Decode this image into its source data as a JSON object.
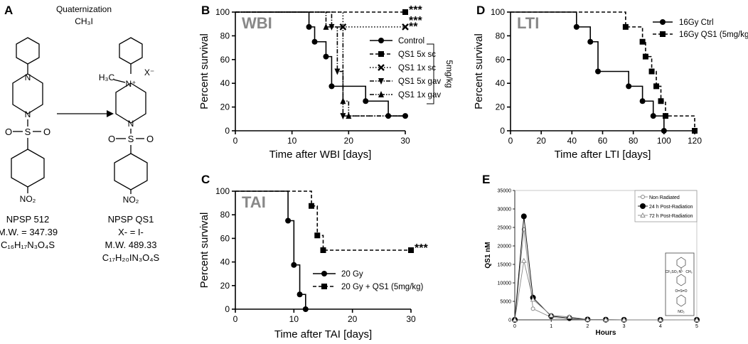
{
  "panel_a": {
    "label": "A",
    "reaction_line1": "Quaternization",
    "reaction_line2": "CH₃I",
    "left": {
      "name": "NPSP 512",
      "mw": "M.W. = 347.39",
      "formula": "C₁₆H₁₇N₃O₄S",
      "so2_o": "O",
      "so2_s": "S",
      "nitro": "NO₂"
    },
    "right": {
      "name": "NPSP QS1",
      "x_line": "X- = I-",
      "mw": "M.W. 489.33",
      "formula": "C₁₇H₂₀IN₃O₄S",
      "methyl": "H₃C",
      "counterion": "X⁻",
      "n_plus": "N⁺",
      "so2_o": "O",
      "so2_s": "S",
      "nitro": "NO₂"
    }
  },
  "chart_data": [
    {
      "id": "B",
      "panel_label": "B",
      "type": "line",
      "inner_title": "WBI",
      "xlabel": "Time after WBI [days]",
      "ylabel": "Percent survival",
      "xlim": [
        0,
        30
      ],
      "ylim": [
        0,
        100
      ],
      "xticks": [
        0,
        10,
        20,
        30
      ],
      "yticks": [
        0,
        20,
        40,
        60,
        80,
        100
      ],
      "dose_note": "5mg/kg",
      "series": [
        {
          "name": "Control",
          "style": "solid",
          "marker": "circle",
          "steps": [
            [
              0,
              100
            ],
            [
              13,
              87.5
            ],
            [
              14,
              75
            ],
            [
              16,
              62.5
            ],
            [
              17,
              37.5
            ],
            [
              23,
              25
            ],
            [
              27,
              12.5
            ],
            [
              30,
              12.5
            ]
          ],
          "markers": [
            [
              13,
              87.5
            ],
            [
              14,
              75
            ],
            [
              16,
              62.5
            ],
            [
              17,
              37.5
            ],
            [
              23,
              25
            ],
            [
              27,
              12.5
            ],
            [
              30,
              12.5
            ]
          ]
        },
        {
          "name": "QS1 5x sc",
          "style": "dashed",
          "marker": "square",
          "steps": [
            [
              0,
              100
            ],
            [
              30,
              100
            ]
          ],
          "markers": [
            [
              30,
              100
            ]
          ]
        },
        {
          "name": "QS1 1x sc",
          "style": "dotted",
          "marker": "x",
          "steps": [
            [
              0,
              100
            ],
            [
              19,
              87.5
            ],
            [
              30,
              87.5
            ]
          ],
          "markers": [
            [
              19,
              87.5
            ],
            [
              30,
              87.5
            ]
          ]
        },
        {
          "name": "QS1 5x gav",
          "style": "dashdot",
          "marker": "tri-down",
          "steps": [
            [
              0,
              100
            ],
            [
              17,
              87.5
            ],
            [
              18,
              50
            ],
            [
              19,
              12.5
            ],
            [
              30,
              12.5
            ]
          ],
          "markers": [
            [
              17,
              87.5
            ],
            [
              18,
              50
            ],
            [
              19,
              12.5
            ]
          ]
        },
        {
          "name": "QS1 1x gav",
          "style": "dashdotdot",
          "marker": "tri-up",
          "steps": [
            [
              0,
              100
            ],
            [
              16,
              87.5
            ],
            [
              19,
              25
            ],
            [
              20,
              12.5
            ],
            [
              30,
              12.5
            ]
          ],
          "markers": [
            [
              16,
              87.5
            ],
            [
              19,
              25
            ],
            [
              20,
              12.5
            ]
          ]
        }
      ],
      "annotations": [
        {
          "text": "***",
          "x": 30,
          "y": 100
        },
        {
          "text": "***",
          "x": 30,
          "y": 91
        },
        {
          "text": "**",
          "x": 30,
          "y": 86
        }
      ]
    },
    {
      "id": "C",
      "panel_label": "C",
      "type": "line",
      "inner_title": "TAI",
      "xlabel": "Time after TAI [days]",
      "ylabel": "Percent survival",
      "xlim": [
        0,
        30
      ],
      "ylim": [
        0,
        100
      ],
      "xticks": [
        0,
        10,
        20,
        30
      ],
      "yticks": [
        0,
        20,
        40,
        60,
        80,
        100
      ],
      "series": [
        {
          "name": "20 Gy",
          "style": "solid",
          "marker": "circle",
          "steps": [
            [
              0,
              100
            ],
            [
              9,
              75
            ],
            [
              10,
              37.5
            ],
            [
              11,
              12.5
            ],
            [
              12,
              0
            ]
          ],
          "markers": [
            [
              9,
              75
            ],
            [
              10,
              37.5
            ],
            [
              11,
              12.5
            ],
            [
              12,
              0
            ]
          ]
        },
        {
          "name": "20 Gy + QS1 (5mg/kg)",
          "style": "dashed",
          "marker": "square",
          "steps": [
            [
              0,
              100
            ],
            [
              13,
              87.5
            ],
            [
              14,
              62.5
            ],
            [
              15,
              50
            ],
            [
              30,
              50
            ]
          ],
          "markers": [
            [
              13,
              87.5
            ],
            [
              14,
              62.5
            ],
            [
              15,
              50
            ],
            [
              30,
              50
            ]
          ]
        }
      ],
      "annotations": [
        {
          "text": "***",
          "x": 30,
          "y": 50
        }
      ]
    },
    {
      "id": "D",
      "panel_label": "D",
      "type": "line",
      "inner_title": "LTI",
      "xlabel": "Time after LTI [days]",
      "ylabel": "Percent survival",
      "xlim": [
        0,
        120
      ],
      "ylim": [
        0,
        100
      ],
      "xticks": [
        0,
        20,
        40,
        60,
        80,
        100,
        120
      ],
      "yticks": [
        0,
        20,
        40,
        60,
        80,
        100
      ],
      "series": [
        {
          "name": "16Gy Ctrl",
          "style": "solid",
          "marker": "circle",
          "steps": [
            [
              0,
              100
            ],
            [
              43,
              87.5
            ],
            [
              52,
              75
            ],
            [
              57,
              50
            ],
            [
              77,
              37.5
            ],
            [
              86,
              25
            ],
            [
              93,
              12.5
            ],
            [
              100,
              0
            ]
          ],
          "markers": [
            [
              43,
              87.5
            ],
            [
              52,
              75
            ],
            [
              57,
              50
            ],
            [
              77,
              37.5
            ],
            [
              86,
              25
            ],
            [
              93,
              12.5
            ],
            [
              100,
              0
            ]
          ]
        },
        {
          "name": "16Gy QS1 (5mg/kg)",
          "style": "dashed",
          "marker": "square",
          "steps": [
            [
              0,
              100
            ],
            [
              75,
              87.5
            ],
            [
              86,
              75
            ],
            [
              88,
              62.5
            ],
            [
              92,
              50
            ],
            [
              95,
              37.5
            ],
            [
              98,
              25
            ],
            [
              101,
              12.5
            ],
            [
              120,
              0
            ]
          ],
          "markers": [
            [
              75,
              87.5
            ],
            [
              86,
              75
            ],
            [
              88,
              62.5
            ],
            [
              92,
              50
            ],
            [
              95,
              37.5
            ],
            [
              98,
              25
            ],
            [
              101,
              12.5
            ],
            [
              120,
              0
            ]
          ]
        }
      ]
    },
    {
      "id": "E",
      "panel_label": "E",
      "type": "line",
      "xlabel": "Hours",
      "ylabel": "QS1 nM",
      "xlim": [
        0,
        5
      ],
      "ylim": [
        0,
        35000
      ],
      "xticks": [
        0,
        1,
        2,
        3,
        4,
        5
      ],
      "yticks": [
        0,
        5000,
        10000,
        15000,
        20000,
        25000,
        30000,
        35000
      ],
      "series": [
        {
          "name": "Non Radiated",
          "marker": "open-circle",
          "color": "#888888",
          "x": [
            0,
            0.25,
            0.5,
            1,
            1.5,
            2,
            2.5,
            3,
            4,
            5
          ],
          "y": [
            0,
            24500,
            3000,
            700,
            200,
            50,
            0,
            0,
            0,
            0
          ]
        },
        {
          "name": "24 h Post-Radiation",
          "marker": "filled-circle",
          "color": "#000000",
          "x": [
            0,
            0.25,
            0.5,
            1,
            1.5,
            2,
            2.5,
            3,
            4,
            5
          ],
          "y": [
            0,
            28000,
            6000,
            1000,
            500,
            100,
            50,
            20,
            10,
            0
          ]
        },
        {
          "name": "72 h Post-Radiation",
          "marker": "open-triangle",
          "color": "#888888",
          "x": [
            0,
            0.25,
            0.5,
            1,
            1.5,
            2,
            2.5,
            3,
            4,
            5
          ],
          "y": [
            0,
            16000,
            5500,
            1200,
            800,
            100,
            50,
            20,
            10,
            0
          ]
        }
      ],
      "inset": {
        "counterion": "CF₃SO₃⁻",
        "n_plus": "N⁺",
        "methyl": "CH₃",
        "so2": "O=S=O",
        "nitro": "NO₂"
      }
    }
  ]
}
